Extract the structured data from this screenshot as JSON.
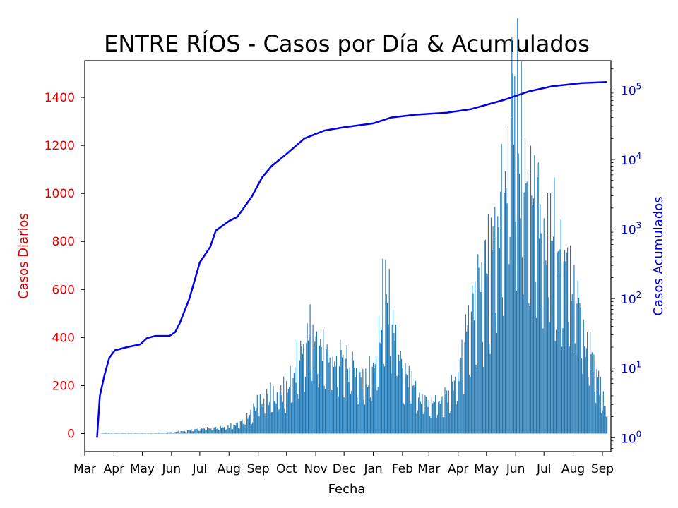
{
  "chart_data": {
    "type": "bar+line",
    "title": "ENTRE RÍOS - Casos por Día & Acumulados",
    "xlabel": "Fecha",
    "ylabel_left": "Casos Diarios",
    "ylabel_right": "Casos Acumulados",
    "x_ticks": [
      "Mar",
      "Apr",
      "May",
      "Jun",
      "Jul",
      "Aug",
      "Sep",
      "Oct",
      "Nov",
      "Dec",
      "Jan",
      "Feb",
      "Mar",
      "Apr",
      "May",
      "Jun",
      "Jul",
      "Aug",
      "Sep"
    ],
    "y_left_ticks": [
      "0",
      "200",
      "400",
      "600",
      "800",
      "1000",
      "1200",
      "1400"
    ],
    "y_left_range": [
      -75,
      1553
    ],
    "y_right_scale": "log",
    "y_right_ticks": [
      {
        "base": "10",
        "exp": "0"
      },
      {
        "base": "10",
        "exp": "1"
      },
      {
        "base": "10",
        "exp": "2"
      },
      {
        "base": "10",
        "exp": "3"
      },
      {
        "base": "10",
        "exp": "4"
      },
      {
        "base": "10",
        "exp": "5"
      }
    ],
    "x_range": [
      "2020-03-01",
      "2021-09-10"
    ],
    "grid": false,
    "colors": {
      "bars": "#1f77b4",
      "line": "#0000ee",
      "left_axis": "#dd0000",
      "right_axis": "#0000cc"
    },
    "series": [
      {
        "type": "bar",
        "axis": "left",
        "daily_points": [
          [
            "2020-03-18",
            1
          ],
          [
            "2020-03-25",
            3
          ],
          [
            "2020-04-01",
            2
          ],
          [
            "2020-05-15",
            2
          ],
          [
            "2020-06-01",
            5
          ],
          [
            "2020-06-15",
            10
          ],
          [
            "2020-07-01",
            18
          ],
          [
            "2020-07-15",
            22
          ],
          [
            "2020-08-01",
            28
          ],
          [
            "2020-08-15",
            50
          ],
          [
            "2020-08-25",
            80
          ],
          [
            "2020-09-01",
            130
          ],
          [
            "2020-09-15",
            150
          ],
          [
            "2020-10-01",
            170
          ],
          [
            "2020-10-15",
            300
          ],
          [
            "2020-10-25",
            420
          ],
          [
            "2020-11-10",
            320
          ],
          [
            "2020-11-25",
            300
          ],
          [
            "2020-12-10",
            270
          ],
          [
            "2020-12-25",
            200
          ],
          [
            "2021-01-05",
            330
          ],
          [
            "2021-01-12",
            560
          ],
          [
            "2021-01-20",
            500
          ],
          [
            "2021-02-01",
            260
          ],
          [
            "2021-02-15",
            170
          ],
          [
            "2021-03-01",
            130
          ],
          [
            "2021-03-15",
            130
          ],
          [
            "2021-04-01",
            220
          ],
          [
            "2021-04-15",
            500
          ],
          [
            "2021-05-01",
            650
          ],
          [
            "2021-05-15",
            850
          ],
          [
            "2021-05-28",
            1450
          ],
          [
            "2021-06-10",
            1050
          ],
          [
            "2021-06-20",
            900
          ],
          [
            "2021-07-01",
            850
          ],
          [
            "2021-07-15",
            780
          ],
          [
            "2021-08-01",
            600
          ],
          [
            "2021-08-15",
            360
          ],
          [
            "2021-08-28",
            220
          ],
          [
            "2021-09-06",
            60
          ]
        ]
      },
      {
        "type": "line",
        "axis": "right",
        "cumulative_points": [
          [
            "2020-03-14",
            1
          ],
          [
            "2020-03-17",
            4
          ],
          [
            "2020-03-22",
            8
          ],
          [
            "2020-03-27",
            14
          ],
          [
            "2020-04-02",
            18
          ],
          [
            "2020-04-15",
            20
          ],
          [
            "2020-04-29",
            22
          ],
          [
            "2020-05-06",
            27
          ],
          [
            "2020-05-15",
            29
          ],
          [
            "2020-05-30",
            29
          ],
          [
            "2020-06-05",
            33
          ],
          [
            "2020-06-10",
            45
          ],
          [
            "2020-06-20",
            100
          ],
          [
            "2020-07-01",
            330
          ],
          [
            "2020-07-12",
            550
          ],
          [
            "2020-07-18",
            950
          ],
          [
            "2020-08-01",
            1300
          ],
          [
            "2020-08-10",
            1500
          ],
          [
            "2020-08-25",
            2900
          ],
          [
            "2020-09-05",
            5500
          ],
          [
            "2020-09-15",
            8000
          ],
          [
            "2020-10-01",
            12000
          ],
          [
            "2020-10-20",
            20000
          ],
          [
            "2020-11-10",
            26000
          ],
          [
            "2020-12-01",
            29000
          ],
          [
            "2021-01-01",
            33000
          ],
          [
            "2021-01-20",
            40000
          ],
          [
            "2021-02-15",
            44000
          ],
          [
            "2021-03-20",
            47000
          ],
          [
            "2021-04-15",
            53000
          ],
          [
            "2021-05-20",
            72000
          ],
          [
            "2021-06-15",
            95000
          ],
          [
            "2021-07-10",
            113000
          ],
          [
            "2021-08-10",
            125000
          ],
          [
            "2021-09-06",
            130000
          ]
        ]
      }
    ]
  }
}
